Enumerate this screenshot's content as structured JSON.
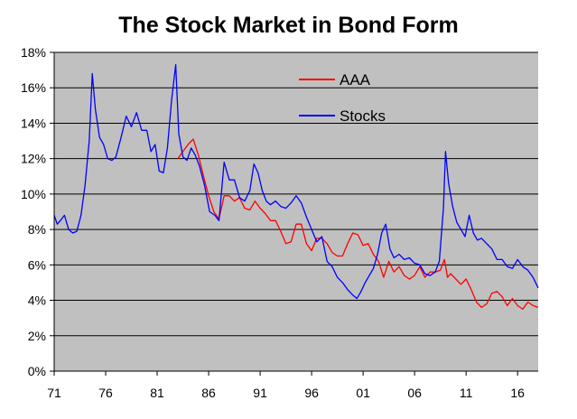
{
  "chart_data": {
    "type": "line",
    "title": "The Stock Market in Bond Form",
    "xlabel": "",
    "ylabel": "",
    "xlim": [
      1971,
      2018
    ],
    "ylim": [
      0,
      18
    ],
    "x_ticks": [
      1971,
      1976,
      1981,
      1986,
      1991,
      1996,
      2001,
      2006,
      2011,
      2016
    ],
    "x_tick_labels": [
      "71",
      "76",
      "81",
      "86",
      "91",
      "96",
      "01",
      "06",
      "11",
      "16"
    ],
    "y_ticks": [
      0,
      2,
      4,
      6,
      8,
      10,
      12,
      14,
      16,
      18
    ],
    "y_tick_labels": [
      "0%",
      "2%",
      "4%",
      "6%",
      "8%",
      "10%",
      "12%",
      "14%",
      "16%",
      "18%"
    ],
    "grid": "horizontal",
    "plot_background": "#c0c0c0",
    "legend_position": "top-center",
    "series": [
      {
        "name": "AAA",
        "color": "#ff0000",
        "points": [
          [
            1983.0,
            12.0
          ],
          [
            1983.5,
            12.4
          ],
          [
            1984.0,
            12.8
          ],
          [
            1984.5,
            13.1
          ],
          [
            1985.0,
            12.2
          ],
          [
            1985.5,
            11.0
          ],
          [
            1986.0,
            9.9
          ],
          [
            1986.5,
            9.0
          ],
          [
            1987.0,
            8.6
          ],
          [
            1987.5,
            9.9
          ],
          [
            1988.0,
            9.9
          ],
          [
            1988.5,
            9.6
          ],
          [
            1989.0,
            9.8
          ],
          [
            1989.5,
            9.2
          ],
          [
            1990.0,
            9.1
          ],
          [
            1990.5,
            9.6
          ],
          [
            1991.0,
            9.2
          ],
          [
            1991.5,
            8.9
          ],
          [
            1992.0,
            8.5
          ],
          [
            1992.5,
            8.5
          ],
          [
            1993.0,
            7.9
          ],
          [
            1993.5,
            7.2
          ],
          [
            1994.0,
            7.3
          ],
          [
            1994.5,
            8.3
          ],
          [
            1995.0,
            8.3
          ],
          [
            1995.5,
            7.2
          ],
          [
            1996.0,
            6.8
          ],
          [
            1996.5,
            7.5
          ],
          [
            1997.0,
            7.5
          ],
          [
            1997.5,
            7.2
          ],
          [
            1998.0,
            6.7
          ],
          [
            1998.5,
            6.5
          ],
          [
            1999.0,
            6.5
          ],
          [
            1999.5,
            7.2
          ],
          [
            2000.0,
            7.8
          ],
          [
            2000.5,
            7.7
          ],
          [
            2001.0,
            7.1
          ],
          [
            2001.5,
            7.2
          ],
          [
            2002.0,
            6.6
          ],
          [
            2002.5,
            6.2
          ],
          [
            2003.0,
            5.3
          ],
          [
            2003.5,
            6.2
          ],
          [
            2004.0,
            5.6
          ],
          [
            2004.5,
            5.9
          ],
          [
            2005.0,
            5.4
          ],
          [
            2005.5,
            5.2
          ],
          [
            2006.0,
            5.4
          ],
          [
            2006.5,
            5.9
          ],
          [
            2007.0,
            5.3
          ],
          [
            2007.5,
            5.6
          ],
          [
            2008.0,
            5.6
          ],
          [
            2008.5,
            5.7
          ],
          [
            2008.9,
            6.3
          ],
          [
            2009.2,
            5.3
          ],
          [
            2009.5,
            5.5
          ],
          [
            2010.0,
            5.2
          ],
          [
            2010.5,
            4.9
          ],
          [
            2011.0,
            5.2
          ],
          [
            2011.5,
            4.6
          ],
          [
            2012.0,
            3.9
          ],
          [
            2012.5,
            3.6
          ],
          [
            2013.0,
            3.8
          ],
          [
            2013.5,
            4.4
          ],
          [
            2014.0,
            4.5
          ],
          [
            2014.5,
            4.2
          ],
          [
            2015.0,
            3.7
          ],
          [
            2015.5,
            4.1
          ],
          [
            2016.0,
            3.7
          ],
          [
            2016.5,
            3.5
          ],
          [
            2017.0,
            3.9
          ],
          [
            2017.5,
            3.7
          ],
          [
            2018.0,
            3.6
          ]
        ]
      },
      {
        "name": "Stocks",
        "color": "#0000ff",
        "points": [
          [
            1971.0,
            8.8
          ],
          [
            1971.3,
            8.3
          ],
          [
            1971.6,
            8.5
          ],
          [
            1972.0,
            8.8
          ],
          [
            1972.4,
            8.0
          ],
          [
            1972.8,
            7.8
          ],
          [
            1973.2,
            7.9
          ],
          [
            1973.6,
            8.8
          ],
          [
            1974.0,
            10.5
          ],
          [
            1974.4,
            13.0
          ],
          [
            1974.7,
            16.8
          ],
          [
            1975.0,
            14.8
          ],
          [
            1975.4,
            13.2
          ],
          [
            1975.8,
            12.8
          ],
          [
            1976.2,
            12.0
          ],
          [
            1976.6,
            11.9
          ],
          [
            1977.0,
            12.1
          ],
          [
            1977.5,
            13.2
          ],
          [
            1978.0,
            14.4
          ],
          [
            1978.5,
            13.8
          ],
          [
            1979.0,
            14.6
          ],
          [
            1979.5,
            13.6
          ],
          [
            1980.0,
            13.6
          ],
          [
            1980.4,
            12.4
          ],
          [
            1980.8,
            12.8
          ],
          [
            1981.2,
            11.3
          ],
          [
            1981.6,
            11.2
          ],
          [
            1982.0,
            12.6
          ],
          [
            1982.4,
            15.3
          ],
          [
            1982.8,
            17.3
          ],
          [
            1983.1,
            13.4
          ],
          [
            1983.5,
            12.1
          ],
          [
            1983.9,
            11.9
          ],
          [
            1984.3,
            12.6
          ],
          [
            1984.7,
            12.2
          ],
          [
            1985.1,
            11.6
          ],
          [
            1985.6,
            10.5
          ],
          [
            1986.1,
            9.0
          ],
          [
            1986.6,
            8.8
          ],
          [
            1987.0,
            8.5
          ],
          [
            1987.5,
            11.8
          ],
          [
            1988.0,
            10.8
          ],
          [
            1988.5,
            10.8
          ],
          [
            1989.0,
            9.8
          ],
          [
            1989.5,
            9.6
          ],
          [
            1990.0,
            10.2
          ],
          [
            1990.4,
            11.7
          ],
          [
            1990.8,
            11.2
          ],
          [
            1991.2,
            10.2
          ],
          [
            1991.6,
            9.6
          ],
          [
            1992.0,
            9.4
          ],
          [
            1992.5,
            9.6
          ],
          [
            1993.0,
            9.3
          ],
          [
            1993.5,
            9.2
          ],
          [
            1994.0,
            9.5
          ],
          [
            1994.5,
            9.9
          ],
          [
            1995.0,
            9.5
          ],
          [
            1995.5,
            8.7
          ],
          [
            1996.0,
            8.0
          ],
          [
            1996.5,
            7.3
          ],
          [
            1997.0,
            7.6
          ],
          [
            1997.5,
            6.2
          ],
          [
            1998.0,
            5.9
          ],
          [
            1998.5,
            5.3
          ],
          [
            1999.0,
            5.0
          ],
          [
            1999.5,
            4.6
          ],
          [
            2000.0,
            4.3
          ],
          [
            2000.4,
            4.1
          ],
          [
            2000.8,
            4.5
          ],
          [
            2001.2,
            5.0
          ],
          [
            2001.6,
            5.4
          ],
          [
            2002.0,
            5.8
          ],
          [
            2002.4,
            6.6
          ],
          [
            2002.8,
            7.8
          ],
          [
            2003.2,
            8.3
          ],
          [
            2003.6,
            6.9
          ],
          [
            2004.0,
            6.4
          ],
          [
            2004.5,
            6.6
          ],
          [
            2005.0,
            6.3
          ],
          [
            2005.5,
            6.4
          ],
          [
            2006.0,
            6.1
          ],
          [
            2006.5,
            6.0
          ],
          [
            2007.0,
            5.5
          ],
          [
            2007.5,
            5.4
          ],
          [
            2008.0,
            5.6
          ],
          [
            2008.4,
            6.2
          ],
          [
            2008.8,
            9.2
          ],
          [
            2009.0,
            12.4
          ],
          [
            2009.3,
            10.6
          ],
          [
            2009.7,
            9.3
          ],
          [
            2010.1,
            8.4
          ],
          [
            2010.5,
            8.0
          ],
          [
            2010.9,
            7.6
          ],
          [
            2011.3,
            8.8
          ],
          [
            2011.7,
            7.8
          ],
          [
            2012.1,
            7.4
          ],
          [
            2012.5,
            7.5
          ],
          [
            2013.0,
            7.2
          ],
          [
            2013.5,
            6.9
          ],
          [
            2014.0,
            6.3
          ],
          [
            2014.5,
            6.3
          ],
          [
            2015.0,
            5.9
          ],
          [
            2015.5,
            5.8
          ],
          [
            2016.0,
            6.3
          ],
          [
            2016.5,
            5.9
          ],
          [
            2017.0,
            5.7
          ],
          [
            2017.5,
            5.3
          ],
          [
            2018.0,
            4.7
          ]
        ]
      }
    ]
  }
}
